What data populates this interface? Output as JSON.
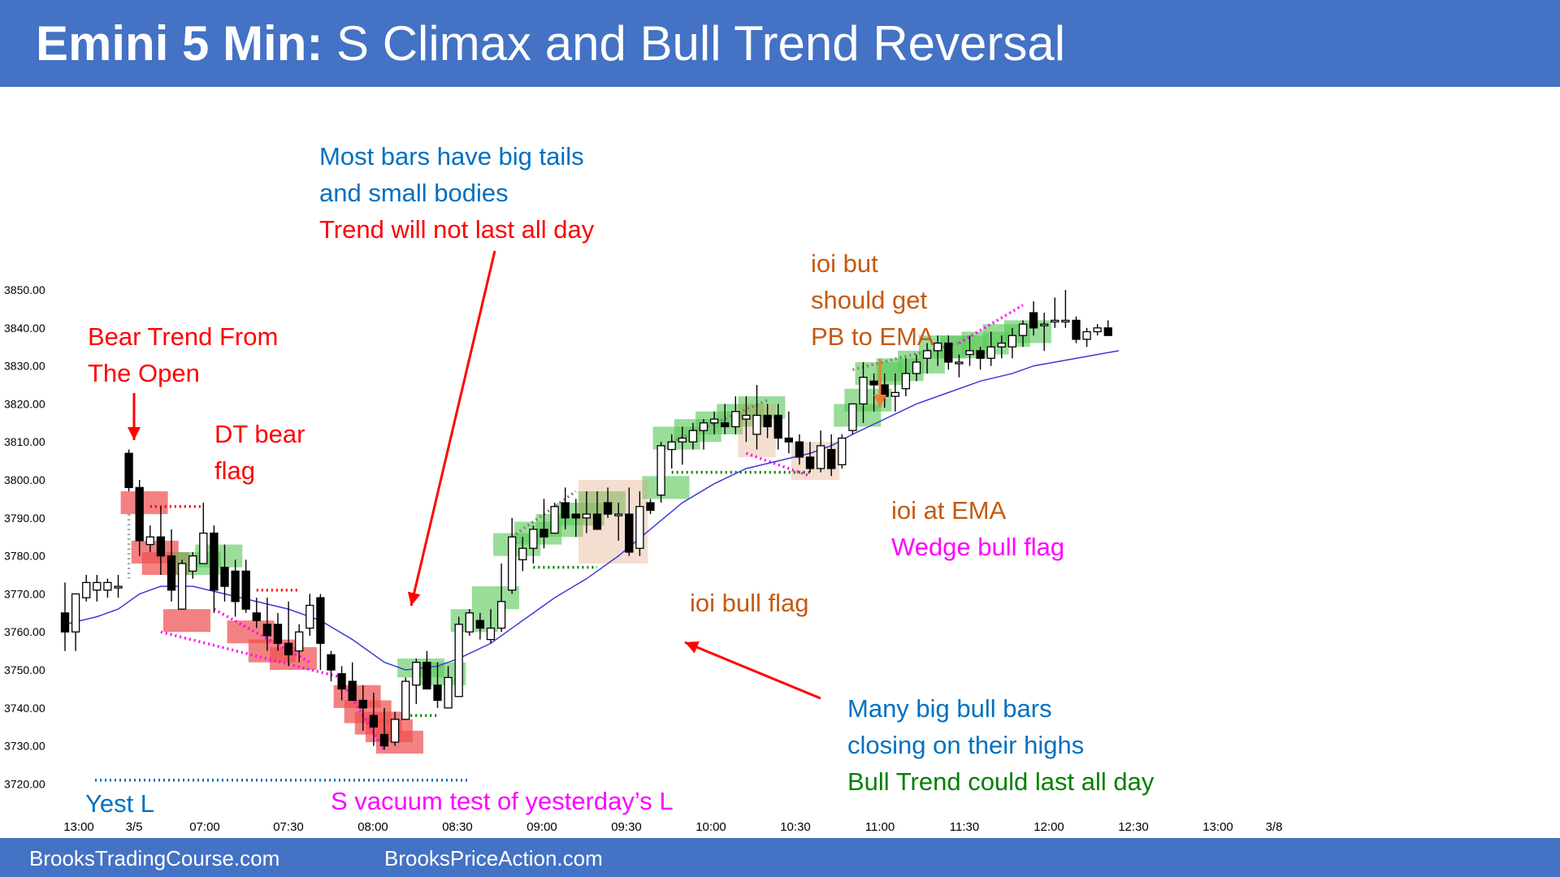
{
  "header": {
    "title_bold": "Emini 5 Min:",
    "title_rest": "S Climax and Bull Trend Reversal"
  },
  "footer": {
    "left": "BrooksTradingCourse.com",
    "right": "BrooksPriceAction.com"
  },
  "colors": {
    "header_bg": "#4472c4",
    "bull": "#ffffff",
    "bear": "#000000",
    "ema": "#3b3bd6",
    "red": "#ff0000",
    "blue": "#0070c0",
    "green": "#008000",
    "orange": "#c55a11",
    "magenta": "#ff00ff"
  },
  "annotations": {
    "bear_trend": [
      "Bear Trend From",
      "The Open"
    ],
    "dt_bear": [
      "DT bear",
      "flag"
    ],
    "tails_blue": [
      "Most bars have big tails",
      "and small bodies"
    ],
    "tails_red": "Trend will not last all day",
    "ioi_but": [
      "ioi but",
      "should get",
      "PB to EMA"
    ],
    "ioi_ema": "ioi at EMA",
    "wedge": "Wedge bull flag",
    "ioi_bull": "ioi bull flag",
    "many_bull": [
      "Many big bull bars",
      "closing on their highs"
    ],
    "bull_trend": "Bull Trend could last all day",
    "yest_l": "Yest L",
    "vacuum": "S vacuum test of yesterday’s L"
  },
  "chart_data": {
    "type": "candlestick",
    "title": "",
    "ylim": [
      3715,
      3855
    ],
    "y_ticks": [
      "3850.00",
      "3840.00",
      "3830.00",
      "3820.00",
      "3810.00",
      "3800.00",
      "3790.00",
      "3780.00",
      "3770.00",
      "3760.00",
      "3750.00",
      "3740.00",
      "3730.00",
      "3720.00"
    ],
    "x_ticks": [
      "13:00",
      "3/5",
      "07:00",
      "07:30",
      "08:00",
      "08:30",
      "09:00",
      "09:30",
      "10:00",
      "10:30",
      "11:00",
      "11:30",
      "12:00",
      "12:30",
      "13:00",
      "3/8"
    ],
    "ohlc": [
      [
        3765,
        3773,
        3755,
        3760
      ],
      [
        3760,
        3770,
        3755,
        3770
      ],
      [
        3769,
        3775,
        3768,
        3773
      ],
      [
        3771,
        3775,
        3768,
        3773
      ],
      [
        3771,
        3774,
        3769,
        3773
      ],
      [
        3772,
        3775,
        3769,
        3772
      ],
      [
        3807,
        3808,
        3797,
        3798
      ],
      [
        3798,
        3800,
        3780,
        3784
      ],
      [
        3783,
        3788,
        3781,
        3785
      ],
      [
        3785,
        3793,
        3775,
        3780
      ],
      [
        3780,
        3787,
        3768,
        3771
      ],
      [
        3766,
        3779,
        3766,
        3778
      ],
      [
        3776,
        3781,
        3774,
        3780
      ],
      [
        3778,
        3794,
        3778,
        3786
      ],
      [
        3786,
        3788,
        3765,
        3771
      ],
      [
        3777,
        3783,
        3768,
        3772
      ],
      [
        3776,
        3779,
        3764,
        3768
      ],
      [
        3776,
        3779,
        3765,
        3766
      ],
      [
        3765,
        3769,
        3761,
        3763
      ],
      [
        3762,
        3769,
        3755,
        3759
      ],
      [
        3762,
        3765,
        3755,
        3757
      ],
      [
        3757,
        3768,
        3751,
        3754
      ],
      [
        3755,
        3762,
        3752,
        3760
      ],
      [
        3761,
        3770,
        3759,
        3767
      ],
      [
        3769,
        3770,
        3750,
        3757
      ],
      [
        3754,
        3755,
        3747,
        3750
      ],
      [
        3749,
        3751,
        3742,
        3745
      ],
      [
        3747,
        3752,
        3742,
        3742
      ],
      [
        3742,
        3746,
        3734,
        3740
      ],
      [
        3738,
        3744,
        3730,
        3735
      ],
      [
        3733,
        3740,
        3729,
        3730
      ],
      [
        3731,
        3739,
        3730,
        3737
      ],
      [
        3737,
        3748,
        3737,
        3747
      ],
      [
        3746,
        3753,
        3741,
        3752
      ],
      [
        3752,
        3755,
        3745,
        3745
      ],
      [
        3746,
        3752,
        3740,
        3742
      ],
      [
        3740,
        3751,
        3740,
        3748
      ],
      [
        3743,
        3764,
        3743,
        3762
      ],
      [
        3760,
        3766,
        3759,
        3765
      ],
      [
        3763,
        3765,
        3758,
        3761
      ],
      [
        3758,
        3766,
        3757,
        3761
      ],
      [
        3761,
        3778,
        3760,
        3768
      ],
      [
        3771,
        3790,
        3770,
        3785
      ],
      [
        3779,
        3785,
        3776,
        3782
      ],
      [
        3782,
        3788,
        3778,
        3787
      ],
      [
        3787,
        3795,
        3782,
        3785
      ],
      [
        3786,
        3794,
        3786,
        3793
      ],
      [
        3794,
        3798,
        3787,
        3790
      ],
      [
        3791,
        3795,
        3785,
        3790
      ],
      [
        3790,
        3797,
        3786,
        3791
      ],
      [
        3791,
        3797,
        3788,
        3787
      ],
      [
        3794,
        3798,
        3790,
        3791
      ],
      [
        3791,
        3794,
        3784,
        3791
      ],
      [
        3791,
        3798,
        3780,
        3781
      ],
      [
        3782,
        3797,
        3780,
        3793
      ],
      [
        3794,
        3795,
        3791,
        3792
      ],
      [
        3796,
        3810,
        3794,
        3809
      ],
      [
        3808,
        3812,
        3803,
        3810
      ],
      [
        3810,
        3814,
        3804,
        3811
      ],
      [
        3810,
        3815,
        3808,
        3813
      ],
      [
        3813,
        3816,
        3808,
        3815
      ],
      [
        3815,
        3818,
        3812,
        3816
      ],
      [
        3815,
        3820,
        3812,
        3814
      ],
      [
        3814,
        3822,
        3812,
        3818
      ],
      [
        3816,
        3822,
        3810,
        3817
      ],
      [
        3812,
        3825,
        3808,
        3817
      ],
      [
        3817,
        3820,
        3811,
        3814
      ],
      [
        3817,
        3820,
        3808,
        3811
      ],
      [
        3811,
        3818,
        3807,
        3810
      ],
      [
        3810,
        3812,
        3804,
        3806
      ],
      [
        3806,
        3810,
        3802,
        3803
      ],
      [
        3803,
        3813,
        3802,
        3809
      ],
      [
        3808,
        3812,
        3801,
        3803
      ],
      [
        3804,
        3812,
        3803,
        3811
      ],
      [
        3813,
        3820,
        3812,
        3820
      ],
      [
        3820,
        3831,
        3815,
        3827
      ],
      [
        3826,
        3828,
        3818,
        3825
      ],
      [
        3825,
        3828,
        3819,
        3822
      ],
      [
        3822,
        3828,
        3818,
        3823
      ],
      [
        3824,
        3832,
        3822,
        3828
      ],
      [
        3828,
        3833,
        3826,
        3831
      ],
      [
        3832,
        3836,
        3828,
        3834
      ],
      [
        3834,
        3838,
        3830,
        3836
      ],
      [
        3836,
        3838,
        3829,
        3831
      ],
      [
        3831,
        3833,
        3827,
        3831
      ],
      [
        3833,
        3838,
        3830,
        3834
      ],
      [
        3834,
        3835,
        3829,
        3832
      ],
      [
        3832,
        3839,
        3830,
        3835
      ],
      [
        3835,
        3838,
        3832,
        3836
      ],
      [
        3835,
        3840,
        3832,
        3838
      ],
      [
        3838,
        3842,
        3835,
        3841
      ],
      [
        3844,
        3847,
        3838,
        3840
      ],
      [
        3841,
        3844,
        3834,
        3841
      ],
      [
        3842,
        3848,
        3840,
        3842
      ],
      [
        3842,
        3850,
        3840,
        3842
      ],
      [
        3842,
        3843,
        3836,
        3837
      ],
      [
        3837,
        3840,
        3835,
        3839
      ],
      [
        3839,
        3841,
        3838,
        3840
      ],
      [
        3840,
        3842,
        3838,
        3838
      ]
    ],
    "ema": [
      [
        0,
        3762
      ],
      [
        3,
        3764
      ],
      [
        5,
        3766
      ],
      [
        7,
        3770
      ],
      [
        9,
        3772
      ],
      [
        12,
        3772
      ],
      [
        15,
        3770
      ],
      [
        18,
        3768
      ],
      [
        21,
        3766
      ],
      [
        24,
        3763
      ],
      [
        27,
        3758
      ],
      [
        30,
        3752
      ],
      [
        32,
        3750
      ],
      [
        35,
        3751
      ],
      [
        37,
        3753
      ],
      [
        40,
        3757
      ],
      [
        43,
        3763
      ],
      [
        46,
        3769
      ],
      [
        49,
        3774
      ],
      [
        52,
        3780
      ],
      [
        55,
        3787
      ],
      [
        58,
        3794
      ],
      [
        61,
        3799
      ],
      [
        64,
        3803
      ],
      [
        67,
        3805
      ],
      [
        70,
        3807
      ],
      [
        72,
        3809
      ],
      [
        74,
        3812
      ],
      [
        77,
        3816
      ],
      [
        80,
        3820
      ],
      [
        83,
        3823
      ],
      [
        86,
        3826
      ],
      [
        89,
        3828
      ],
      [
        91,
        3830
      ],
      [
        95,
        3832
      ],
      [
        99,
        3834
      ]
    ]
  }
}
